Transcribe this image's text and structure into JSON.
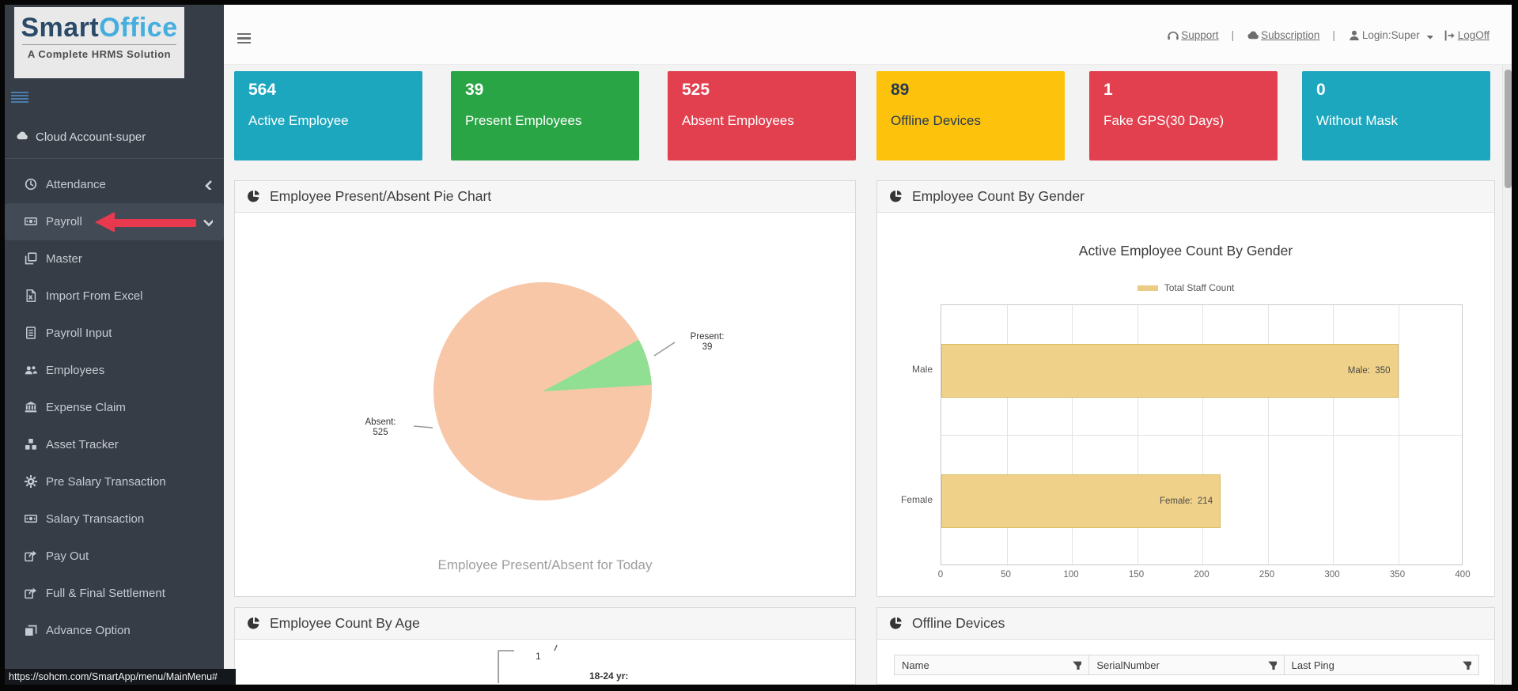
{
  "statusbar": {
    "url": "https://sohcm.com/SmartApp/menu/MainMenu#"
  },
  "logo": {
    "brand_primary": "Smart",
    "brand_secondary": "Office",
    "tagline": "A Complete HRMS Solution"
  },
  "sidebar": {
    "account_label": "Cloud Account-super",
    "items": [
      {
        "label": "Attendance",
        "icon": "clock-icon",
        "chevron": "left"
      },
      {
        "label": "Payroll",
        "icon": "banknote-icon",
        "chevron": "down",
        "active": true
      },
      {
        "label": "Master",
        "icon": "copy-icon"
      },
      {
        "label": "Import From Excel",
        "icon": "file-excel-icon"
      },
      {
        "label": "Payroll Input",
        "icon": "document-lines-icon"
      },
      {
        "label": "Employees",
        "icon": "users-icon"
      },
      {
        "label": "Expense Claim",
        "icon": "bank-icon"
      },
      {
        "label": "Asset Tracker",
        "icon": "cubes-icon"
      },
      {
        "label": "Pre Salary Transaction",
        "icon": "gear-icon"
      },
      {
        "label": "Salary Transaction",
        "icon": "banknote-icon"
      },
      {
        "label": "Pay Out",
        "icon": "share-icon"
      },
      {
        "label": "Full & Final Settlement",
        "icon": "share-icon"
      },
      {
        "label": "Advance Option",
        "icon": "layers-icon"
      }
    ]
  },
  "topbar": {
    "separator": "|",
    "links": [
      {
        "label": "Support",
        "icon": "headphones-icon"
      },
      {
        "label": "Subscription",
        "icon": "cloud-icon"
      },
      {
        "label": "Login:Super",
        "icon": "user-icon",
        "caret": true
      },
      {
        "label": "LogOff",
        "icon": "logoff-icon"
      }
    ]
  },
  "cards": [
    {
      "value": "564",
      "label": "Active Employee",
      "bg": "#1ca7bf",
      "fg": "#ffffff"
    },
    {
      "value": "39",
      "label": "Present Employees",
      "bg": "#2aa546",
      "fg": "#ffffff"
    },
    {
      "value": "525",
      "label": "Absent Employees",
      "bg": "#e2404f",
      "fg": "#ffffff"
    },
    {
      "value": "89",
      "label": "Offline Devices",
      "bg": "#fdc30c",
      "fg": "#253a52"
    },
    {
      "value": "1",
      "label": "Fake GPS(30 Days)",
      "bg": "#e2404f",
      "fg": "#ffffff"
    },
    {
      "value": "0",
      "label": "Without Mask",
      "bg": "#1ca7bf",
      "fg": "#ffffff"
    }
  ],
  "panels": {
    "pie": {
      "title": "Employee Present/Absent Pie Chart"
    },
    "gender": {
      "title": "Employee Count By Gender"
    },
    "age": {
      "title": "Employee Count By Age"
    },
    "offline": {
      "title": "Offline Devices",
      "columns": [
        "Name",
        "SerialNumber",
        "Last Ping"
      ]
    }
  },
  "chart_data": [
    {
      "type": "pie",
      "title": "Employee Present/Absent Pie Chart",
      "labels": [
        "Present",
        "Absent"
      ],
      "values": [
        39,
        525
      ],
      "colors": [
        "#90df92",
        "#f8c7a8"
      ],
      "point_labels": [
        {
          "title": "Present:",
          "value": "39"
        },
        {
          "title": "Absent:",
          "value": "525"
        }
      ],
      "caption": "Employee Present/Absent for Today"
    },
    {
      "type": "bar",
      "orientation": "horizontal",
      "title": "Active Employee Count By Gender",
      "legend": [
        {
          "label": "Total Staff Count",
          "color": "#eccb84"
        }
      ],
      "categories": [
        "Male",
        "Female"
      ],
      "values": [
        350,
        214
      ],
      "bar_labels": [
        "Male:  350",
        "Female:  214"
      ],
      "bar_color": "#f0d189",
      "bar_border": "#d9b964",
      "xlim": [
        0,
        400
      ],
      "xticks": [
        0,
        50,
        100,
        150,
        200,
        250,
        300,
        350,
        400
      ],
      "grid": true
    },
    {
      "type": "bar",
      "title": "Employee Count By Age",
      "partial": true,
      "visible_labels": [
        "1",
        "18-24 yr:"
      ]
    }
  ]
}
